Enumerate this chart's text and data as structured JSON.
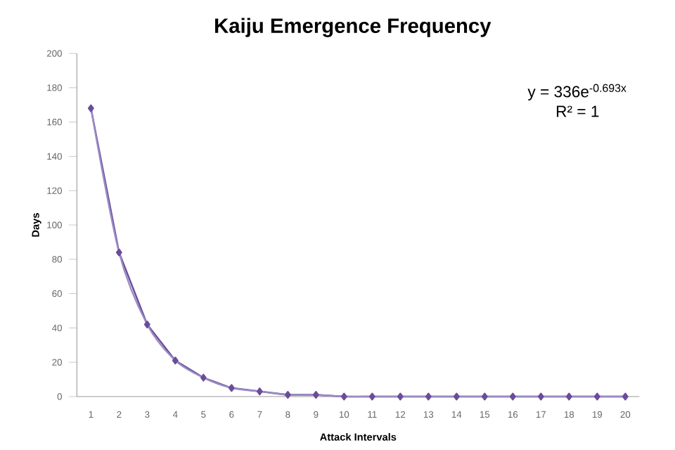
{
  "chart_data": {
    "type": "line",
    "title": "Kaiju Emergence Frequency",
    "xlabel": "Attack Intervals",
    "ylabel": "Days",
    "categories": [
      "1",
      "2",
      "3",
      "4",
      "5",
      "6",
      "7",
      "8",
      "9",
      "10",
      "11",
      "12",
      "13",
      "14",
      "15",
      "16",
      "17",
      "18",
      "19",
      "20"
    ],
    "series": [
      {
        "color": "#6b4c9a",
        "marker": "diamond",
        "values": [
          168,
          84,
          42,
          21,
          11,
          5,
          3,
          1,
          1,
          0,
          0,
          0,
          0,
          0,
          0,
          0,
          0,
          0,
          0,
          0
        ]
      },
      {
        "color": "#9b8cc4",
        "marker": "none",
        "values": [
          168,
          84,
          42,
          21,
          11,
          5,
          3,
          1,
          1,
          0,
          0,
          0,
          0,
          0,
          0,
          0,
          0,
          0,
          0,
          0
        ]
      }
    ],
    "ylim": [
      0,
      200
    ],
    "yticks": [
      0,
      20,
      40,
      60,
      80,
      100,
      120,
      140,
      160,
      180,
      200
    ],
    "grid": false,
    "line_style": "solid",
    "annotations": [
      "y = 336e$^{-0.693x}$",
      "R² = 1"
    ]
  }
}
